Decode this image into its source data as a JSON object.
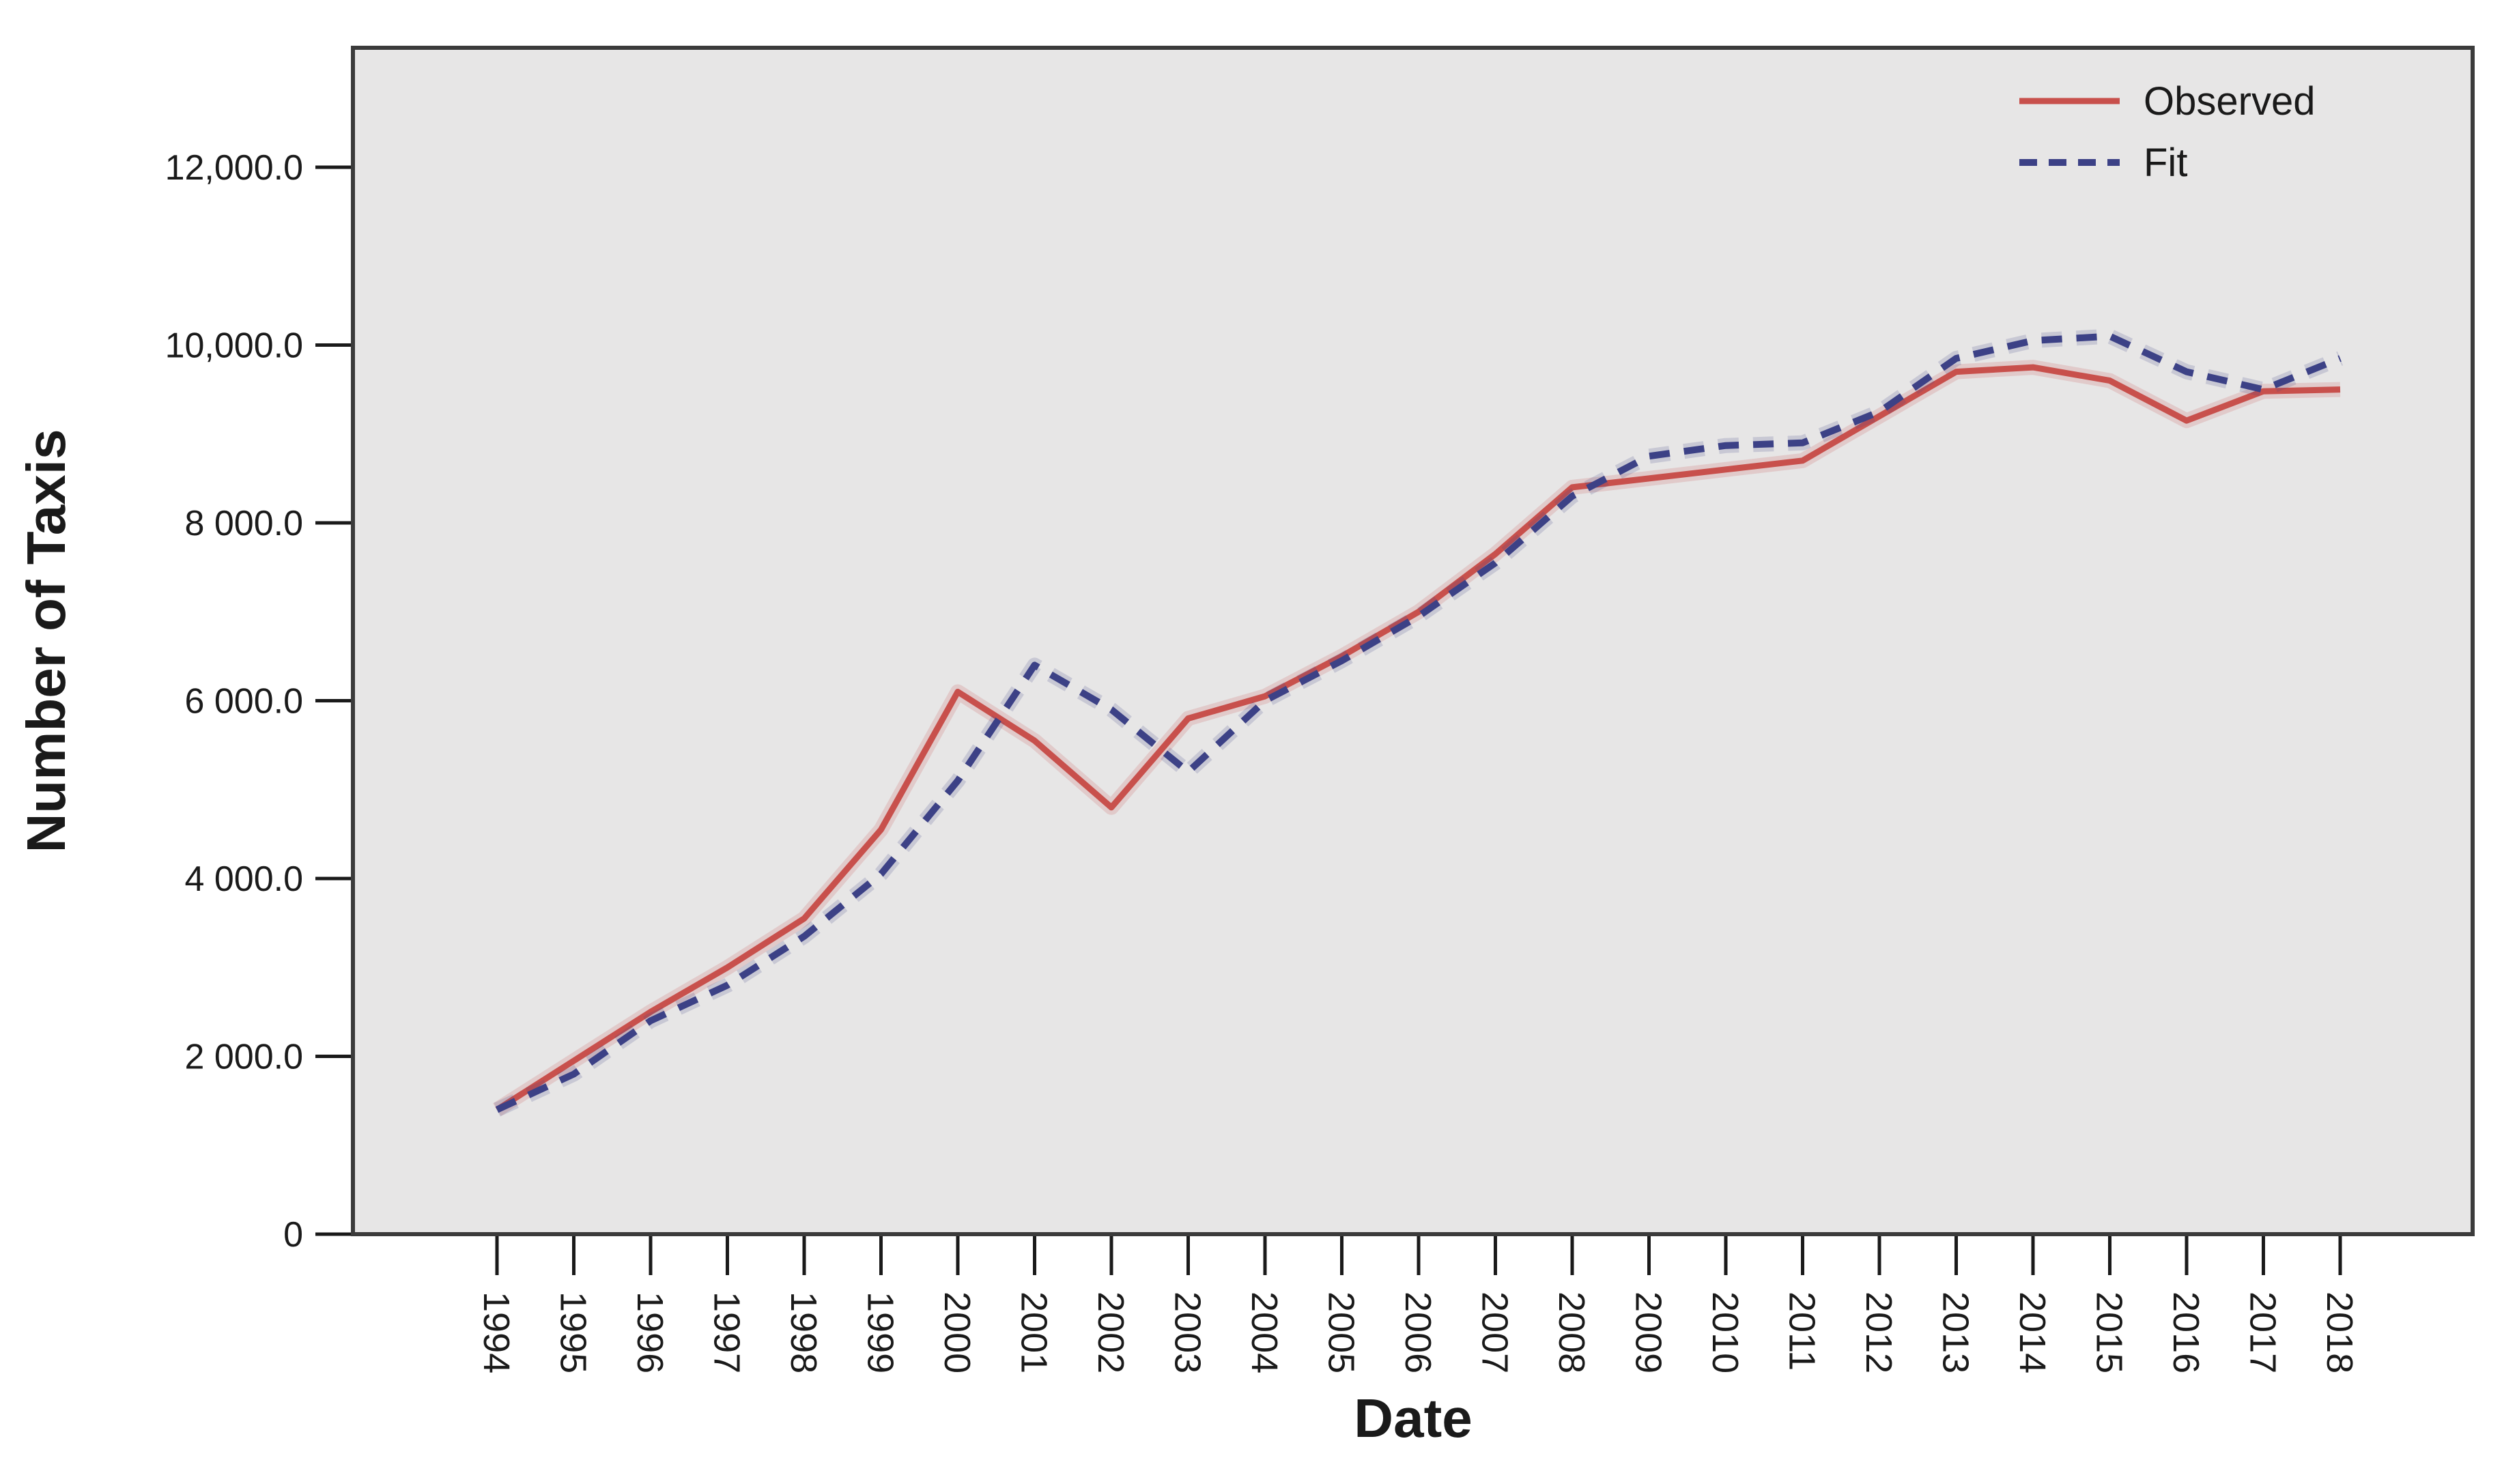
{
  "figure": {
    "background": "#ffffff",
    "plot_background": "#e7e6e6",
    "border_color": "#3b3b3b",
    "tick_color": "#1a1a1a"
  },
  "y_axis": {
    "label": "Number of Taxis",
    "ticks": [
      {
        "value": 0,
        "label": "0"
      },
      {
        "value": 2000,
        "label": "2 000.0"
      },
      {
        "value": 4000,
        "label": "4 000.0"
      },
      {
        "value": 6000,
        "label": "6 000.0"
      },
      {
        "value": 8000,
        "label": "8 000.0"
      },
      {
        "value": 10000,
        "label": "10,000.0"
      },
      {
        "value": 12000,
        "label": "12,000.0"
      }
    ]
  },
  "x_axis": {
    "label": "Date",
    "tick_labels": [
      "1994",
      "1995",
      "1996",
      "1997",
      "1998",
      "1999",
      "2000",
      "2001",
      "2002",
      "2003",
      "2004",
      "2005",
      "2006",
      "2007",
      "2008",
      "2009",
      "2010",
      "2011",
      "2012",
      "2013",
      "2014",
      "2015",
      "2016",
      "2017",
      "2018"
    ]
  },
  "legend": {
    "items": [
      {
        "name": "Observed",
        "style": "solid",
        "color": "#c8504c"
      },
      {
        "name": "Fit",
        "style": "dashed",
        "color": "#3c4186"
      }
    ],
    "position": "top-right-inside"
  },
  "chart_data": {
    "type": "line",
    "title": "",
    "xlabel": "Date",
    "ylabel": "Number of Taxis",
    "x": [
      1994,
      1995,
      1996,
      1997,
      1998,
      1999,
      2000,
      2001,
      2002,
      2003,
      2004,
      2005,
      2006,
      2007,
      2008,
      2009,
      2010,
      2011,
      2012,
      2013,
      2014,
      2015,
      2016,
      2017,
      2018
    ],
    "series": [
      {
        "name": "Observed",
        "color": "#c8504c",
        "style": "solid",
        "values": [
          1400,
          1950,
          2500,
          3000,
          3550,
          4550,
          6100,
          5550,
          4800,
          5800,
          6050,
          6500,
          7000,
          7650,
          8400,
          8500,
          8600,
          8700,
          9200,
          9700,
          9750,
          9600,
          9150,
          9480,
          9500
        ]
      },
      {
        "name": "Fit",
        "color": "#3c4186",
        "style": "dashed",
        "values": [
          1400,
          1800,
          2400,
          2800,
          3350,
          4050,
          5100,
          6400,
          5900,
          5200,
          6000,
          6450,
          6950,
          7550,
          8300,
          8750,
          8870,
          8900,
          9250,
          9850,
          10050,
          10100,
          9700,
          9500,
          9850
        ]
      }
    ],
    "ylim": [
      0,
      13340
    ],
    "ytick_interval": 2000,
    "grid": false,
    "legend_position": "top-right-inside"
  }
}
